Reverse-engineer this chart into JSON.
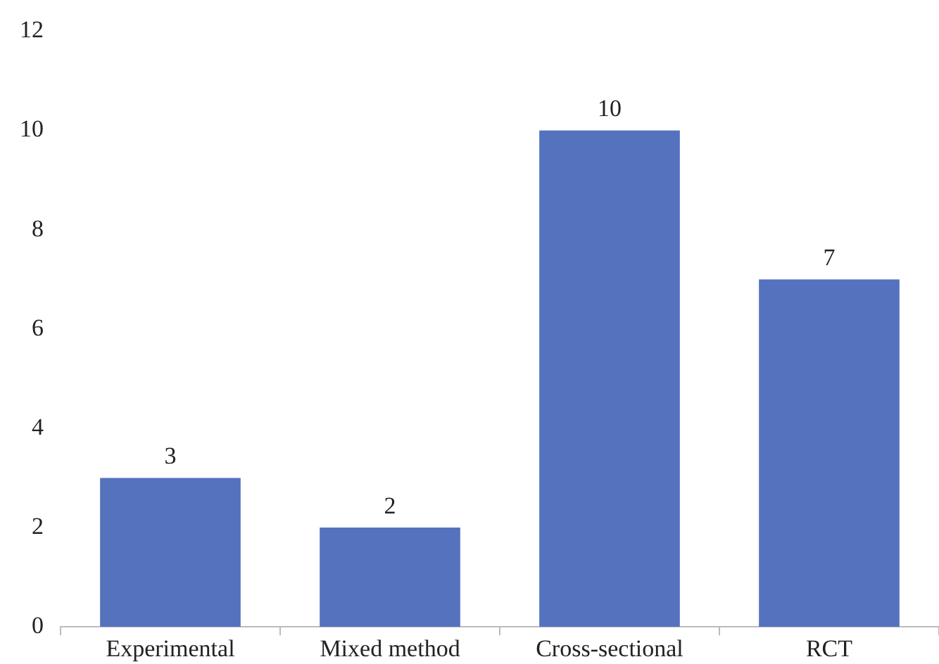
{
  "chart_data": {
    "type": "bar",
    "categories": [
      "Experimental",
      "Mixed method",
      "Cross-sectional",
      "RCT"
    ],
    "values": [
      3,
      2,
      10,
      7
    ],
    "color": "#5472be",
    "ylim": [
      0,
      12
    ],
    "yticks": [
      0,
      2,
      4,
      6,
      8,
      10,
      12
    ],
    "data_labels": true,
    "grid": false,
    "legend": false
  }
}
